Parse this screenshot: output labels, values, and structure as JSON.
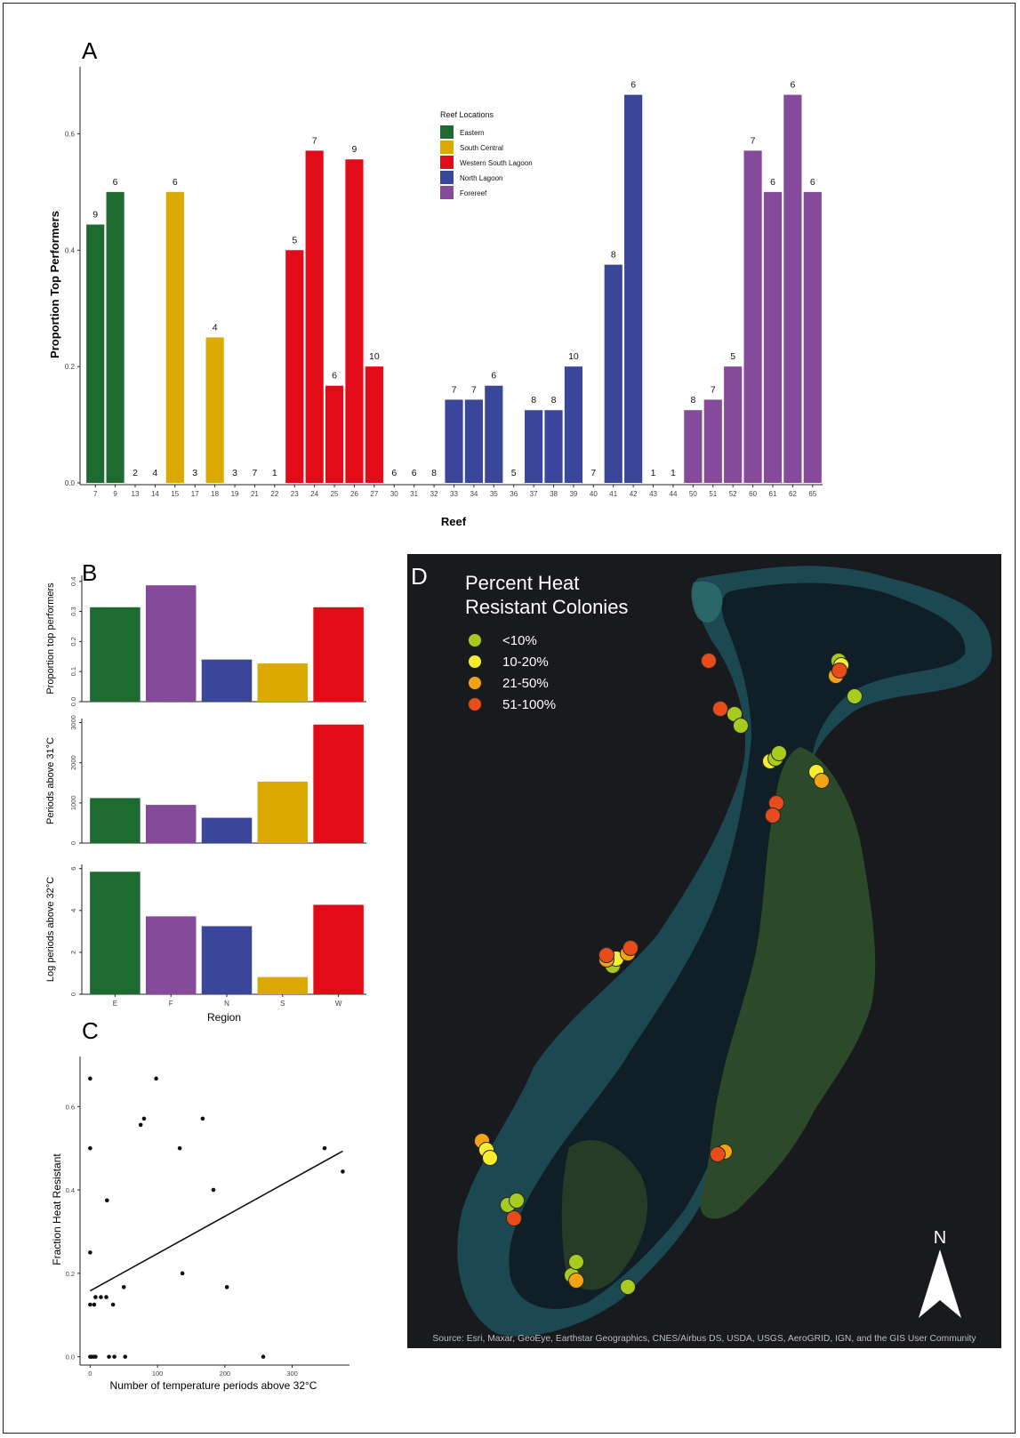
{
  "panel_letters": {
    "a": "A",
    "b": "B",
    "c": "C",
    "d": "D"
  },
  "colors": {
    "Eastern": "#1e6b31",
    "South Central": "#dca900",
    "Western South Lagoon": "#e20b17",
    "North Lagoon": "#3a4699",
    "Forereef": "#864a9a",
    "dot_lt10": "#a7cc1f",
    "dot_10_20": "#f6ee2f",
    "dot_21_50": "#f5a316",
    "dot_51_100": "#e84c1b",
    "map_bg": "#191a1e"
  },
  "chart_data": [
    {
      "id": "A",
      "type": "bar",
      "xlabel": "Reef",
      "ylabel": "Proportion Top Performers",
      "ylim": [
        0,
        0.7
      ],
      "yticks": [
        "0.0",
        "0.2",
        "0.4",
        "0.6"
      ],
      "legend": {
        "title": "Reef Locations",
        "placement": "top-center",
        "entries": [
          "Eastern",
          "South Central",
          "Western South Lagoon",
          "North Lagoon",
          "Forereef"
        ]
      },
      "categories": [
        "7",
        "9",
        "13",
        "14",
        "15",
        "17",
        "18",
        "19",
        "21",
        "22",
        "23",
        "24",
        "25",
        "26",
        "27",
        "30",
        "31",
        "32",
        "33",
        "34",
        "35",
        "36",
        "37",
        "38",
        "39",
        "40",
        "41",
        "42",
        "43",
        "44",
        "50",
        "51",
        "52",
        "60",
        "61",
        "62",
        "65"
      ],
      "values": [
        0.444,
        0.5,
        0,
        0,
        0.5,
        0,
        0.25,
        0,
        0,
        0,
        0.4,
        0.571,
        0.167,
        0.556,
        0.2,
        0,
        0,
        0,
        0.143,
        0.143,
        0.167,
        0,
        0.125,
        0.125,
        0.2,
        0,
        0.375,
        0.667,
        0,
        0,
        0.125,
        0.143,
        0.2,
        0.571,
        0.5,
        0.667,
        0.5
      ],
      "labels": [
        "9",
        "6",
        "2",
        "4",
        "6",
        "3",
        "4",
        "3",
        "7",
        "1",
        "5",
        "7",
        "6",
        "9",
        "10",
        "6",
        "6",
        "8",
        "7",
        "7",
        "6",
        "5",
        "8",
        "8",
        "10",
        "7",
        "8",
        "6",
        "1",
        "1",
        "8",
        "7",
        "5",
        "7",
        "6",
        "6",
        "6"
      ],
      "region": [
        "Eastern",
        "Eastern",
        "South Central",
        "South Central",
        "South Central",
        "South Central",
        "South Central",
        "Western South Lagoon",
        "Western South Lagoon",
        "Western South Lagoon",
        "Western South Lagoon",
        "Western South Lagoon",
        "Western South Lagoon",
        "Western South Lagoon",
        "Western South Lagoon",
        "North Lagoon",
        "North Lagoon",
        "North Lagoon",
        "North Lagoon",
        "North Lagoon",
        "North Lagoon",
        "North Lagoon",
        "North Lagoon",
        "North Lagoon",
        "North Lagoon",
        "North Lagoon",
        "North Lagoon",
        "North Lagoon",
        "North Lagoon",
        "North Lagoon",
        "Forereef",
        "Forereef",
        "Forereef",
        "Forereef",
        "Forereef",
        "Forereef",
        "Forereef"
      ]
    },
    {
      "id": "B1",
      "type": "bar",
      "ylabel": "Proportion top performers",
      "ylim": [
        0,
        0.42
      ],
      "yticks": [
        "0.0",
        "0.1",
        "0.2",
        "0.3",
        "0.4"
      ],
      "yticks_values": [
        0,
        0.1,
        0.2,
        0.3,
        0.4
      ],
      "categories": [
        "E",
        "F",
        "N",
        "S",
        "W"
      ],
      "values": [
        0.314,
        0.387,
        0.14,
        0.127,
        0.314
      ]
    },
    {
      "id": "B2",
      "type": "bar",
      "ylabel": "Periods above 31°C",
      "ylim": [
        0,
        3100
      ],
      "yticks": [
        "0",
        "1000",
        "2000",
        "3000"
      ],
      "yticks_values": [
        0,
        1000,
        2000,
        3000
      ],
      "categories": [
        "E",
        "F",
        "N",
        "S",
        "W"
      ],
      "values": [
        1120,
        950,
        630,
        1530,
        2950
      ]
    },
    {
      "id": "B3",
      "type": "bar",
      "xlabel": "Region",
      "ylabel": "Log periods above 32°C",
      "ylim": [
        0,
        6.2
      ],
      "yticks": [
        "0",
        "2",
        "4",
        "6"
      ],
      "yticks_values": [
        0,
        2,
        4,
        6
      ],
      "categories": [
        "E",
        "F",
        "N",
        "S",
        "W"
      ],
      "values": [
        5.85,
        3.72,
        3.25,
        0.82,
        4.27
      ]
    },
    {
      "id": "C",
      "type": "scatter",
      "xlabel": "Number of temperature periods above 32°C",
      "ylabel": "Fraction Heat Resistant",
      "xlim": [
        -15,
        385
      ],
      "ylim": [
        -0.02,
        0.72
      ],
      "xticks": [
        "0",
        "100",
        "200",
        "300"
      ],
      "xticks_values": [
        0,
        100,
        200,
        300
      ],
      "yticks": [
        "0.0",
        "0.2",
        "0.4",
        "0.6"
      ],
      "yticks_values": [
        0,
        0.2,
        0.4,
        0.6
      ],
      "points": [
        [
          0,
          0.667
        ],
        [
          98,
          0.667
        ],
        [
          0,
          0.5
        ],
        [
          133,
          0.5
        ],
        [
          348,
          0.5
        ],
        [
          75,
          0.556
        ],
        [
          80,
          0.571
        ],
        [
          167,
          0.571
        ],
        [
          375,
          0.444
        ],
        [
          183,
          0.4
        ],
        [
          25,
          0.375
        ],
        [
          0,
          0.25
        ],
        [
          137,
          0.2
        ],
        [
          50,
          0.167
        ],
        [
          203,
          0.167
        ],
        [
          8,
          0.143
        ],
        [
          16,
          0.143
        ],
        [
          24,
          0.143
        ],
        [
          0,
          0.125
        ],
        [
          6,
          0.125
        ],
        [
          34,
          0.125
        ],
        [
          0,
          0
        ],
        [
          2,
          0
        ],
        [
          5,
          0
        ],
        [
          8,
          0
        ],
        [
          28,
          0
        ],
        [
          36,
          0
        ],
        [
          52,
          0
        ],
        [
          257,
          0
        ]
      ],
      "fit_line": [
        [
          0,
          0.158
        ],
        [
          375,
          0.493
        ]
      ]
    }
  ],
  "map": {
    "title_line1": "Percent Heat",
    "title_line2": "Resistant Colonies",
    "legend": [
      {
        "label": "<10%",
        "color": "#a7cc1f"
      },
      {
        "label": "10-20%",
        "color": "#f6ee2f"
      },
      {
        "label": "21-50%",
        "color": "#f5a316"
      },
      {
        "label": "51-100%",
        "color": "#e84c1b"
      }
    ],
    "north_label": "N",
    "source": "Source: Esri, Maxar, GeoEye, Earthstar Geographics, CNES/Airbus DS, USDA, USGS, AeroGRID, IGN, and the GIS User Community"
  }
}
